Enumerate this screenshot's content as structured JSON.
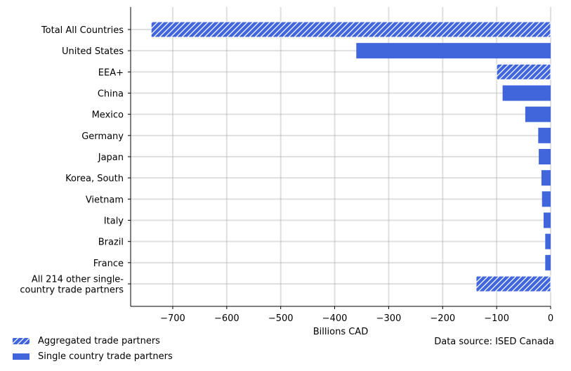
{
  "chart_data": {
    "type": "bar",
    "orientation": "horizontal",
    "categories": [
      "Total All Countries",
      "United States",
      "EEA+",
      "China",
      "Mexico",
      "Germany",
      "Japan",
      "Korea, South",
      "Vietnam",
      "Italy",
      "Brazil",
      "France",
      "All 214 other single-\ncountry trade partners"
    ],
    "values": [
      -740,
      -360,
      -100,
      -89,
      -47,
      -23,
      -22,
      -17,
      -16,
      -13,
      -10,
      -10,
      -138
    ],
    "aggregated": [
      true,
      false,
      true,
      false,
      false,
      false,
      false,
      false,
      false,
      false,
      false,
      false,
      true
    ],
    "xlabel": "Billions CAD",
    "xlim": [
      -778,
      0
    ],
    "xticks": [
      -700,
      -600,
      -500,
      -400,
      -300,
      -200,
      -100,
      0
    ],
    "xtick_labels": [
      "−700",
      "−600",
      "−500",
      "−400",
      "−300",
      "−200",
      "−100",
      "0"
    ],
    "grid": true,
    "bar_color": "#4166dc",
    "legend": {
      "placement": "bottom-left",
      "entries": [
        {
          "label": "Aggregated trade partners",
          "style": "hatched"
        },
        {
          "label": "Single country trade partners",
          "style": "solid"
        }
      ]
    },
    "source_note": "Data source: ISED Canada"
  }
}
